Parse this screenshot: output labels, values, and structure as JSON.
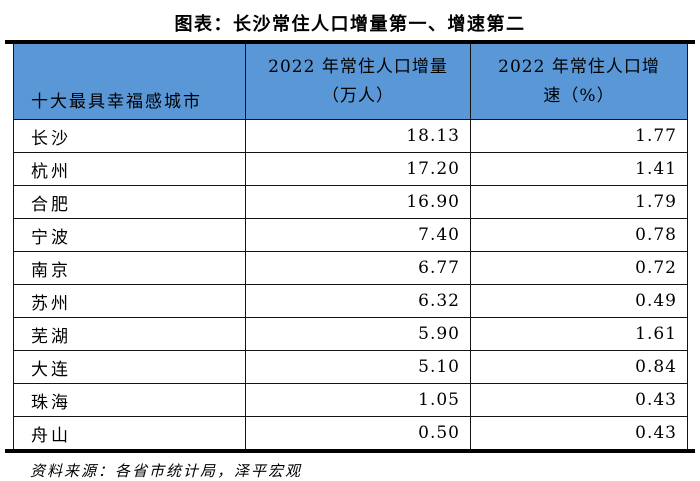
{
  "title": "图表：长沙常住人口增量第一、增速第二",
  "table": {
    "header": {
      "col1": "十大最具幸福感城市",
      "col2_line1": "2022 年常住人口增量",
      "col2_line2": "（万人）",
      "col3_line1": "2022 年常住人口增",
      "col3_line2": "速（%）"
    },
    "rows": [
      {
        "city": "长沙",
        "increment": "18.13",
        "growth": "1.77"
      },
      {
        "city": "杭州",
        "increment": "17.20",
        "growth": "1.41"
      },
      {
        "city": "合肥",
        "increment": "16.90",
        "growth": "1.79"
      },
      {
        "city": "宁波",
        "increment": "7.40",
        "growth": "0.78"
      },
      {
        "city": "南京",
        "increment": "6.77",
        "growth": "0.72"
      },
      {
        "city": "苏州",
        "increment": "6.32",
        "growth": "0.49"
      },
      {
        "city": "芜湖",
        "increment": "5.90",
        "growth": "1.61"
      },
      {
        "city": "大连",
        "increment": "5.10",
        "growth": "0.84"
      },
      {
        "city": "珠海",
        "increment": "1.05",
        "growth": "0.43"
      },
      {
        "city": "舟山",
        "increment": "0.50",
        "growth": "0.43"
      }
    ]
  },
  "source_note": "资料来源：各省市统计局，泽平宏观",
  "colors": {
    "header_bg": "#5997D6",
    "grid_border": "#141414",
    "rule": "#000000"
  },
  "chart_data": {
    "type": "table",
    "title": "图表：长沙常住人口增量第一、增速第二",
    "categories": [
      "长沙",
      "杭州",
      "合肥",
      "宁波",
      "南京",
      "苏州",
      "芜湖",
      "大连",
      "珠海",
      "舟山"
    ],
    "series": [
      {
        "name": "2022 年常住人口增量（万人）",
        "values": [
          18.13,
          17.2,
          16.9,
          7.4,
          6.77,
          6.32,
          5.9,
          5.1,
          1.05,
          0.5
        ]
      },
      {
        "name": "2022 年常住人口增速（%）",
        "values": [
          1.77,
          1.41,
          1.79,
          0.78,
          0.72,
          0.49,
          1.61,
          0.84,
          0.43,
          0.43
        ]
      }
    ],
    "row_label_header": "十大最具幸福感城市",
    "source": "资料来源：各省市统计局，泽平宏观"
  }
}
